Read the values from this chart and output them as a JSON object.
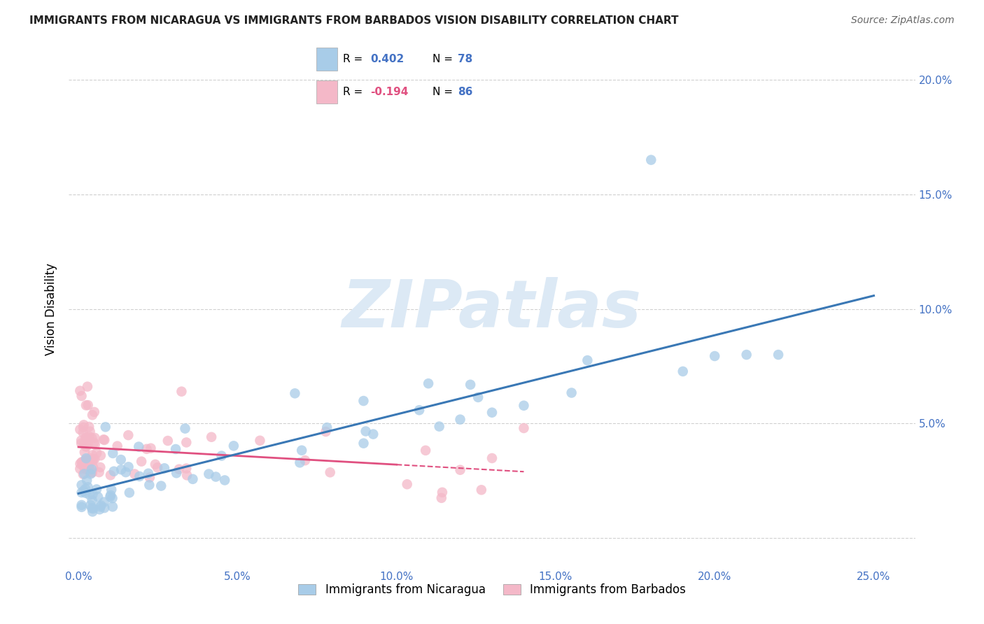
{
  "title": "IMMIGRANTS FROM NICARAGUA VS IMMIGRANTS FROM BARBADOS VISION DISABILITY CORRELATION CHART",
  "source": "Source: ZipAtlas.com",
  "ylabel": "Vision Disability",
  "xlim": [
    -0.003,
    0.263
  ],
  "ylim": [
    -0.013,
    0.213
  ],
  "xlabel_ticks": [
    0.0,
    0.05,
    0.1,
    0.15,
    0.2,
    0.25
  ],
  "xlabel_labels": [
    "0.0%",
    "5.0%",
    "10.0%",
    "15.0%",
    "20.0%",
    "25.0%"
  ],
  "ylabel_ticks": [
    0.0,
    0.05,
    0.1,
    0.15,
    0.2
  ],
  "ylabel_labels": [
    "",
    "5.0%",
    "10.0%",
    "15.0%",
    "20.0%"
  ],
  "legend1_R": "0.402",
  "legend1_N": "78",
  "legend2_R": "-0.194",
  "legend2_N": "86",
  "blue_color": "#a8cce8",
  "pink_color": "#f4b8c8",
  "blue_line_color": "#3a78b5",
  "pink_line_color": "#e05080",
  "watermark_color": "#dce9f5",
  "title_color": "#222222",
  "source_color": "#666666",
  "tick_color": "#4472c4",
  "grid_color": "#d0d0d0"
}
